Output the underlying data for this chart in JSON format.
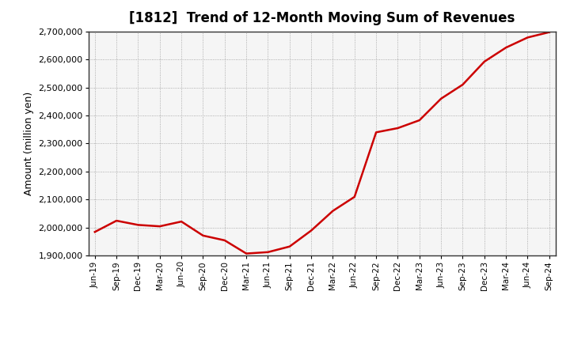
{
  "title": "[1812]  Trend of 12-Month Moving Sum of Revenues",
  "ylabel": "Amount (million yen)",
  "line_color": "#cc0000",
  "line_width": 1.8,
  "background_color": "#ffffff",
  "plot_bg_color": "#f5f5f5",
  "grid_color": "#999999",
  "ylim": [
    1900000,
    2700000
  ],
  "yticks": [
    1900000,
    2000000,
    2100000,
    2200000,
    2300000,
    2400000,
    2500000,
    2600000,
    2700000
  ],
  "x_labels": [
    "Jun-19",
    "Sep-19",
    "Dec-19",
    "Mar-20",
    "Jun-20",
    "Sep-20",
    "Dec-20",
    "Mar-21",
    "Jun-21",
    "Sep-21",
    "Dec-21",
    "Mar-22",
    "Jun-22",
    "Sep-22",
    "Dec-22",
    "Mar-23",
    "Jun-23",
    "Sep-23",
    "Dec-23",
    "Mar-24",
    "Jun-24",
    "Sep-24"
  ],
  "data": {
    "Jun-19": 1985000,
    "Sep-19": 2025000,
    "Dec-19": 2010000,
    "Mar-20": 2005000,
    "Jun-20": 2022000,
    "Sep-20": 1972000,
    "Dec-20": 1955000,
    "Mar-21": 1908000,
    "Jun-21": 1913000,
    "Sep-21": 1933000,
    "Dec-21": 1990000,
    "Mar-22": 2060000,
    "Jun-22": 2110000,
    "Sep-22": 2340000,
    "Dec-22": 2355000,
    "Mar-23": 2383000,
    "Jun-23": 2460000,
    "Sep-23": 2510000,
    "Dec-23": 2592000,
    "Mar-24": 2642000,
    "Jun-24": 2678000,
    "Sep-24": 2697000
  }
}
